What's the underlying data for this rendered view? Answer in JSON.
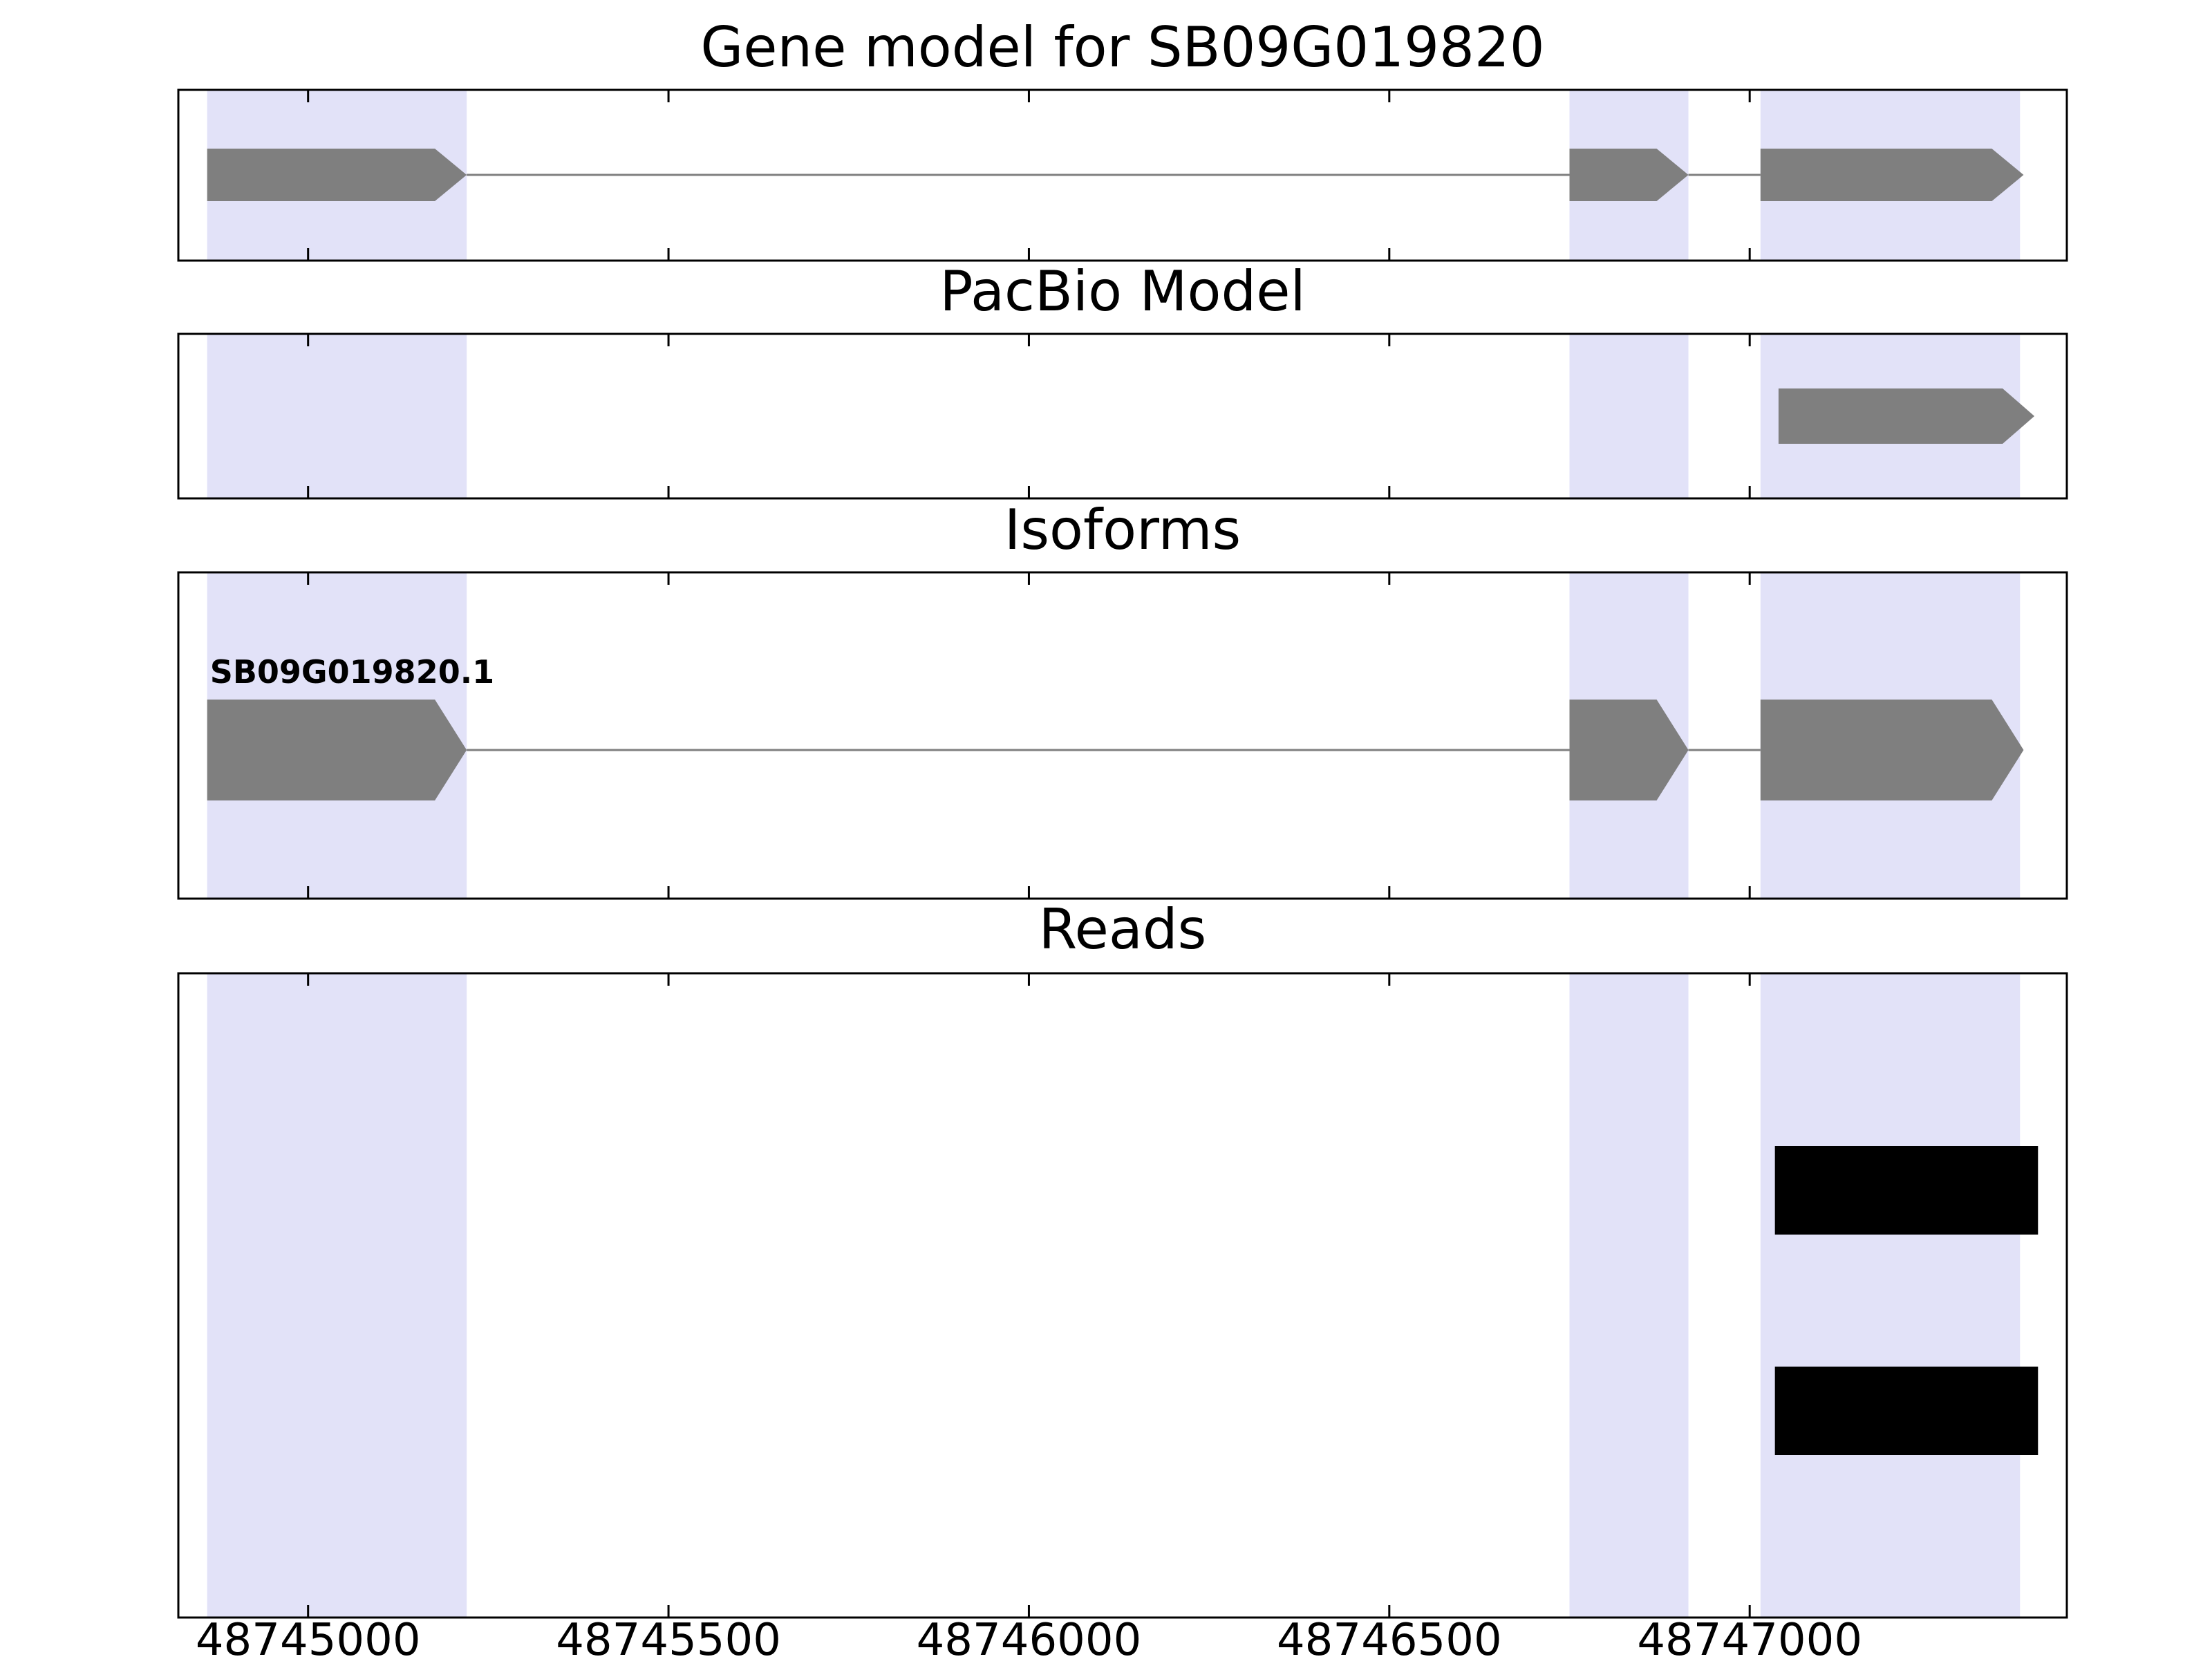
{
  "chart_data": {
    "type": "gene-model-tracks",
    "x_axis": {
      "range": [
        48744820,
        48747440
      ],
      "ticks": [
        48745000,
        48745500,
        48746000,
        48746500,
        48747000
      ]
    },
    "highlight_regions": [
      {
        "start": 48744860,
        "end": 48745220
      },
      {
        "start": 48746750,
        "end": 48746915
      },
      {
        "start": 48747015,
        "end": 48747375
      }
    ],
    "panels": [
      {
        "title": "Gene model for SB09G019820",
        "kind": "gene",
        "strand": "+",
        "exons": [
          [
            48744860,
            48745220
          ],
          [
            48746750,
            48746915
          ],
          [
            48747015,
            48747380
          ]
        ]
      },
      {
        "title": "PacBio Model",
        "kind": "gene",
        "strand": "+",
        "exons": [
          [
            48747040,
            48747395
          ]
        ]
      },
      {
        "title": "Isoforms",
        "kind": "gene",
        "strand": "+",
        "label": "SB09G019820.1",
        "exons": [
          [
            48744860,
            48745220
          ],
          [
            48746750,
            48746915
          ],
          [
            48747015,
            48747380
          ]
        ]
      },
      {
        "title": "Reads",
        "kind": "reads",
        "reads": [
          [
            48747035,
            48747400
          ],
          [
            48747035,
            48747400
          ]
        ]
      }
    ],
    "colors": {
      "exon": "#7f7f7f",
      "intron": "#7f7f7f",
      "highlight": "#e2e2f8",
      "read": "#000000",
      "border": "#000000",
      "background": "#ffffff"
    }
  }
}
